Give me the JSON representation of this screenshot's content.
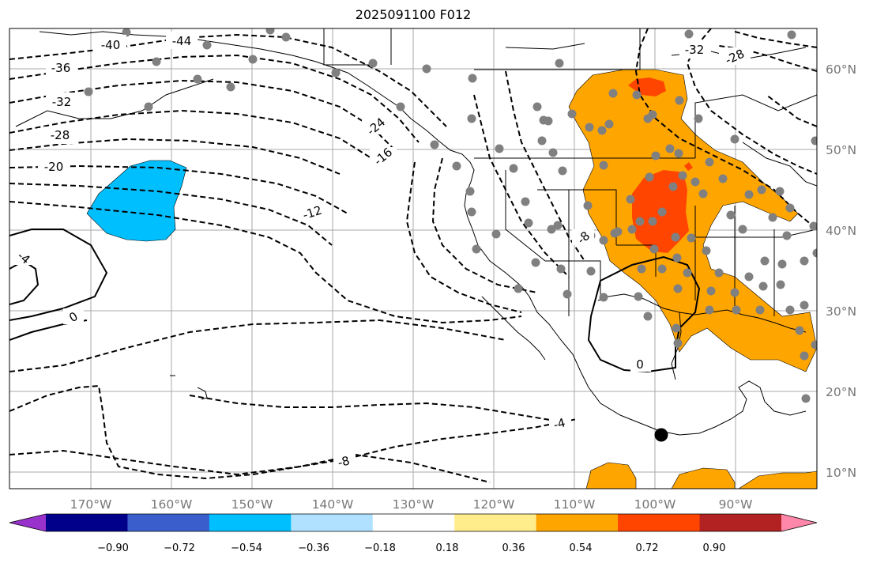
{
  "title": "2025091100 F012",
  "lat_labels": [
    "60°N",
    "50°N",
    "40°N",
    "30°N",
    "20°N",
    "10°N"
  ],
  "lon_labels": [
    "170°W",
    "160°W",
    "150°W",
    "140°W",
    "130°W",
    "120°W",
    "110°W",
    "100°W",
    "90°W"
  ],
  "map": {
    "lon_range": [
      -180,
      -80
    ],
    "lat_range": [
      8,
      65
    ],
    "gridlines": true
  },
  "contour_labels": [
    "-40",
    "-44",
    "-36",
    "-32",
    "-28",
    "-20",
    "-24",
    "-16",
    "-12",
    "-8",
    "-4",
    "0",
    "-4",
    "-8",
    "-32",
    "-28",
    "0"
  ],
  "colorbar": {
    "tick_labels": [
      "−0.90",
      "−0.72",
      "−0.54",
      "−0.36",
      "−0.18",
      "0.18",
      "0.36",
      "0.54",
      "0.72",
      "0.90"
    ],
    "colors": [
      "#9932CC",
      "#00008B",
      "#3A5FCD",
      "#00BFFF",
      "#B0E2FF",
      "#FFFFFF",
      "#FFEC8B",
      "#FFA500",
      "#FF4500",
      "#B22222",
      "#FF88AA"
    ]
  },
  "shading_colors": {
    "negative": "#00BFFF",
    "positive": "#FFA500",
    "strong_positive": "#FF4500"
  },
  "marker_color": "#808080"
}
